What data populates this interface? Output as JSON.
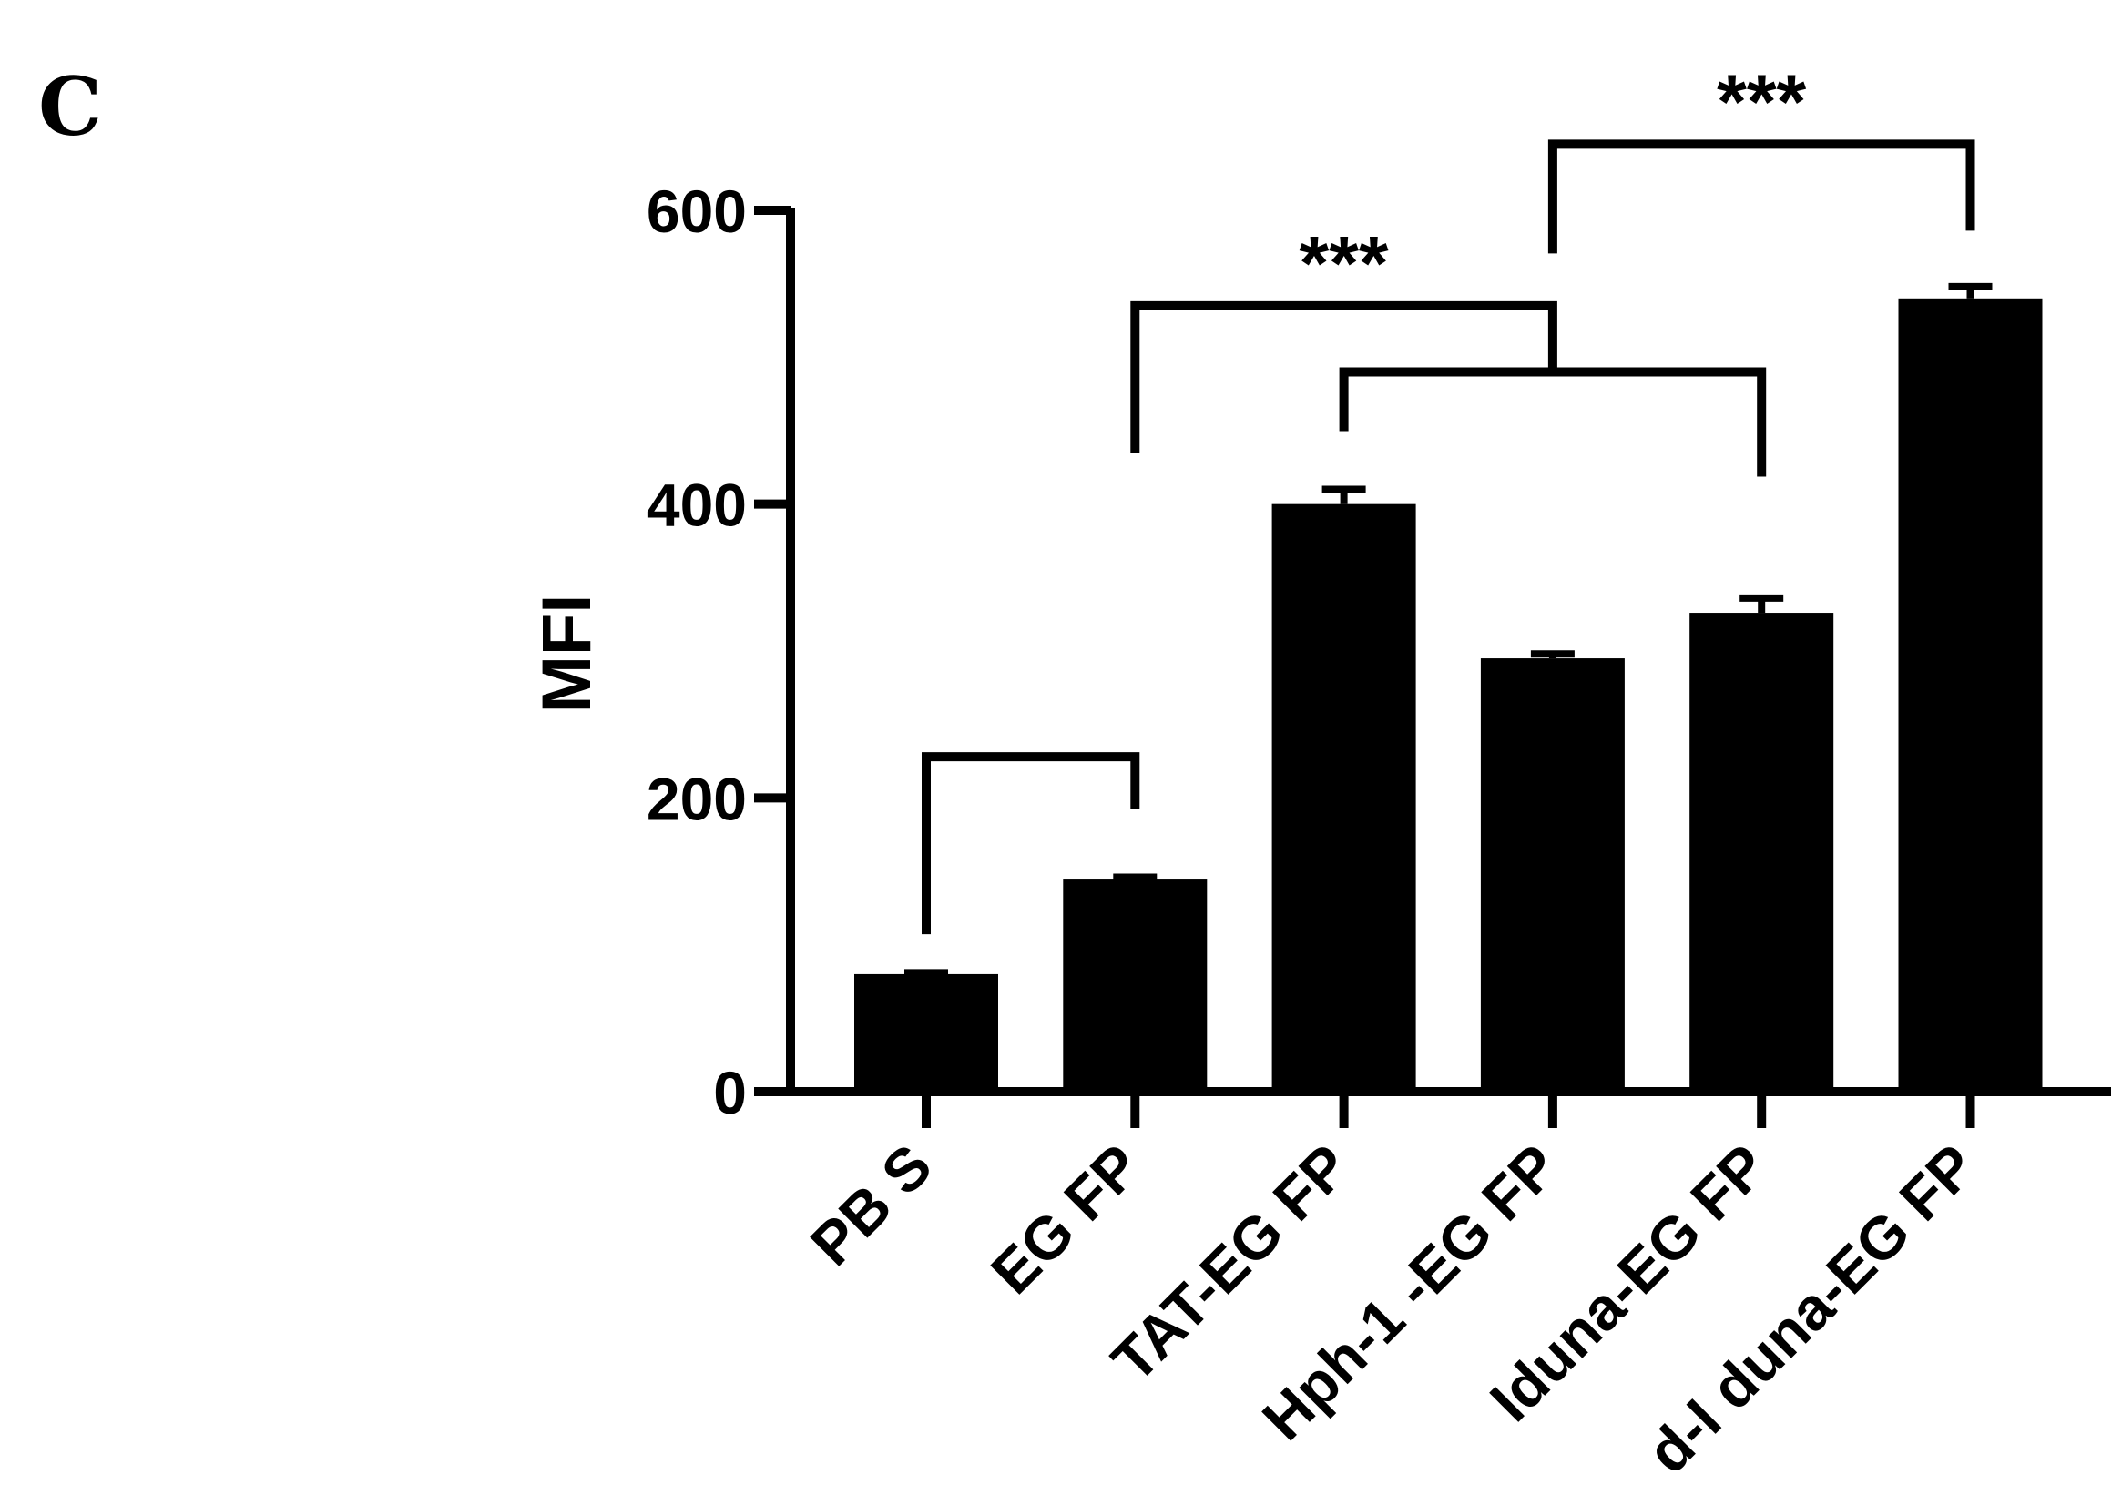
{
  "panel_label": "C",
  "chart_data": {
    "type": "bar",
    "ylabel": "MFI",
    "xlabel": "",
    "ylim": [
      0,
      600
    ],
    "yticks": [
      0,
      200,
      400,
      600
    ],
    "ytick_labels": [
      "0",
      "200",
      "400",
      "600"
    ],
    "categories": [
      "PB S",
      "EG FP",
      "TAT-EG FP",
      "Hph-1 -EG FP",
      "Iduna-EG FP",
      "d-I duna-EG FP"
    ],
    "values": [
      80,
      145,
      400,
      295,
      326,
      540
    ],
    "errors": [
      1,
      1,
      10,
      3,
      10,
      8
    ],
    "bar_color": "#000000",
    "significance": [
      {
        "from": 0,
        "to": 1,
        "label": "",
        "level": 228
      },
      {
        "from": 2,
        "to": 4,
        "label": "",
        "level": 490
      },
      {
        "from": 1,
        "to": 3,
        "label": "***",
        "level": 535
      },
      {
        "from": 3,
        "to": 5,
        "label": "***",
        "level": 645
      }
    ]
  }
}
